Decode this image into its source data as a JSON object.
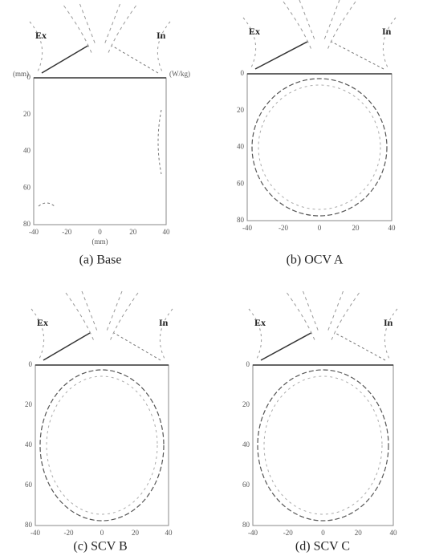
{
  "panels": [
    {
      "caption": "(a)  Base",
      "ex": "Ex",
      "in": "In",
      "y_unit": "(mm)",
      "x_unit": "(mm)",
      "legend_unit": "(W/kg)",
      "yticks": [
        "0",
        "20",
        "40",
        "60",
        "80"
      ],
      "xticks": [
        "-40",
        "-20",
        "0",
        "20",
        "40"
      ]
    },
    {
      "caption": "(b)  OCV  A",
      "ex": "Ex",
      "in": "In",
      "yticks": [
        "0",
        "20",
        "40",
        "60",
        "80"
      ],
      "xticks": [
        "-40",
        "-20",
        "0",
        "20",
        "40"
      ]
    },
    {
      "caption": "(c)  SCV  B",
      "ex": "Ex",
      "in": "In",
      "yticks": [
        "0",
        "20",
        "40",
        "60",
        "80"
      ],
      "xticks": [
        "-40",
        "-20",
        "0",
        "20",
        "40"
      ]
    },
    {
      "caption": "(d)  SCV  C",
      "ex": "Ex",
      "in": "In",
      "yticks": [
        "0",
        "20",
        "40",
        "60",
        "80"
      ],
      "xticks": [
        "-40",
        "-20",
        "0",
        "20",
        "40"
      ]
    }
  ]
}
